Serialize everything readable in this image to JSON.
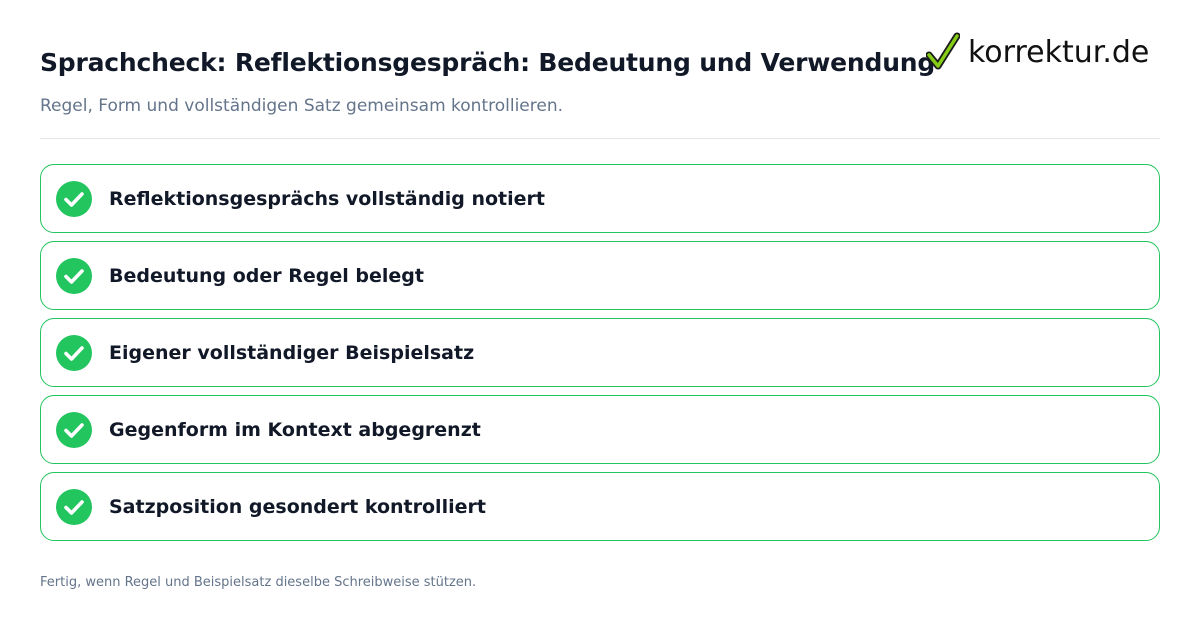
{
  "header": {
    "title": "Sprachcheck: Reflektionsgespräch: Bedeutung und Verwendung",
    "subtitle": "Regel, Form und vollständigen Satz gemeinsam kontrollieren."
  },
  "brand": {
    "logo_text": "korrektur.de",
    "logo_icon": "checkmark-icon",
    "check_color": "#22c55e"
  },
  "colors": {
    "accent_green": "#22c55e",
    "title": "#111827",
    "muted": "#64748b",
    "divider": "#e5e7eb"
  },
  "checklist": {
    "items": [
      {
        "label": "Reflektionsgesprächs vollständig notiert",
        "icon": "check-circle-icon",
        "checked": true
      },
      {
        "label": "Bedeutung oder Regel belegt",
        "icon": "check-circle-icon",
        "checked": true
      },
      {
        "label": "Eigener vollständiger Beispielsatz",
        "icon": "check-circle-icon",
        "checked": true
      },
      {
        "label": "Gegenform im Kontext abgegrenzt",
        "icon": "check-circle-icon",
        "checked": true
      },
      {
        "label": "Satzposition gesondert kontrolliert",
        "icon": "check-circle-icon",
        "checked": true
      }
    ]
  },
  "footer": {
    "note": "Fertig, wenn Regel und Beispielsatz dieselbe Schreibweise stützen."
  }
}
